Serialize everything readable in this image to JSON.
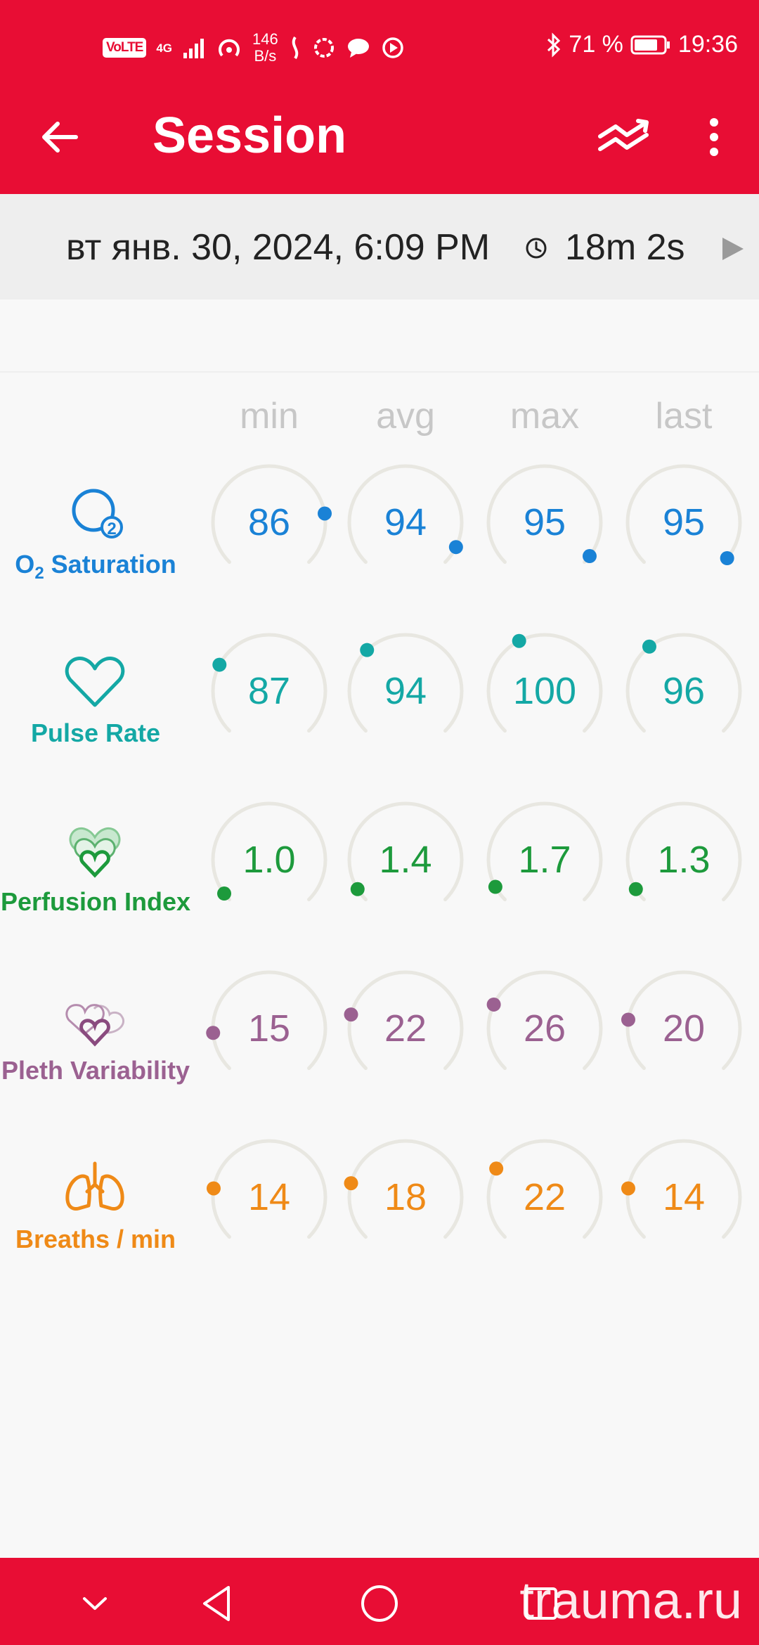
{
  "status_bar": {
    "volte": "VoLTE",
    "network": "4G",
    "speed_value": "146",
    "speed_unit": "B/s",
    "battery_percent": "71 %",
    "time": "19:36"
  },
  "app_bar": {
    "title": "Session"
  },
  "session": {
    "date": "вт янв. 30, 2024, 6:09 PM",
    "duration": "18m 2s"
  },
  "columns": [
    "min",
    "avg",
    "max",
    "last"
  ],
  "metrics": [
    {
      "label_main": "O",
      "label_sub": "2",
      "label_rest": " Saturation",
      "color": "#1a82d6",
      "values": [
        "86",
        "94",
        "95",
        "95"
      ],
      "levels": [
        0.8,
        0.93,
        0.97,
        0.98
      ]
    },
    {
      "label": "Pulse Rate",
      "color": "#14a8a5",
      "values": [
        "87",
        "94",
        "100",
        "96"
      ],
      "levels": [
        0.27,
        0.34,
        0.4,
        0.36
      ]
    },
    {
      "label": "Perfusion Index",
      "color": "#1d9a3c",
      "values": [
        "1.0",
        "1.4",
        "1.7",
        "1.3"
      ],
      "levels": [
        0.03,
        0.05,
        0.06,
        0.05
      ]
    },
    {
      "label": "Pleth Variability",
      "color": "#9b6191",
      "values": [
        "15",
        "22",
        "26",
        "20"
      ],
      "levels": [
        0.15,
        0.22,
        0.26,
        0.2
      ]
    },
    {
      "label": "Breaths / min",
      "color": "#ef8a17",
      "values": [
        "14",
        "18",
        "22",
        "14"
      ],
      "levels": [
        0.2,
        0.22,
        0.28,
        0.2
      ]
    }
  ],
  "watermark": "trauma.ru",
  "icons": {
    "back": "arrow-left-icon",
    "trend": "trend-chart-icon",
    "more": "more-vert-icon",
    "clock": "clock-icon",
    "play": "play-icon"
  }
}
